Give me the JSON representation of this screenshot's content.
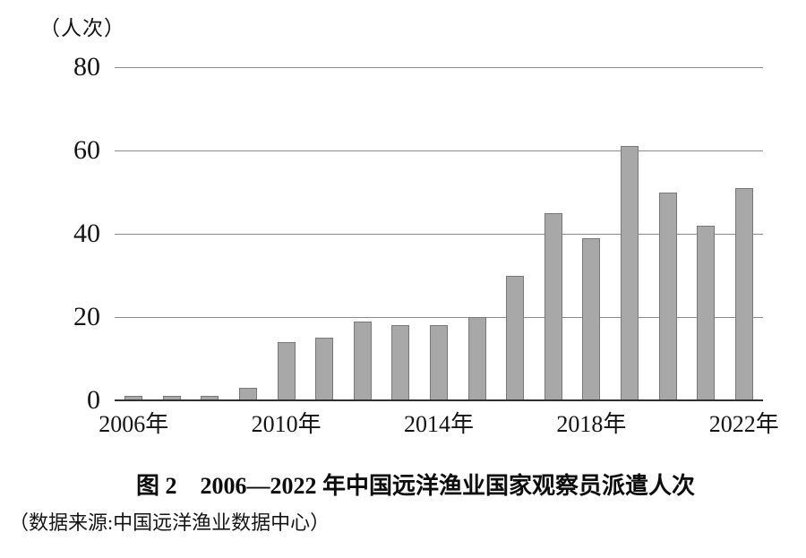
{
  "chart_data": {
    "type": "bar",
    "title": "图 2　2006—2022 年中国远洋渔业国家观察员派遣人次",
    "unit_label": "（人次）",
    "source_note": "（数据来源:中国远洋渔业数据中心）",
    "categories": [
      "2006年",
      "2007年",
      "2008年",
      "2009年",
      "2010年",
      "2011年",
      "2012年",
      "2013年",
      "2014年",
      "2015年",
      "2016年",
      "2017年",
      "2018年",
      "2019年",
      "2020年",
      "2021年",
      "2022年"
    ],
    "values": [
      1,
      1,
      1,
      3,
      14,
      15,
      19,
      18,
      18,
      20,
      30,
      45,
      39,
      61,
      50,
      42,
      51
    ],
    "xlabel": "",
    "ylabel": "人次",
    "ylim": [
      0,
      80
    ],
    "y_ticks": [
      0,
      20,
      40,
      60,
      80
    ],
    "x_tick_labels": [
      "2006年",
      "2010年",
      "2014年",
      "2018年",
      "2022年"
    ],
    "x_tick_indices": [
      0,
      4,
      8,
      12,
      16
    ],
    "grid": true,
    "legend": false,
    "colors": {
      "bar_fill": "#a8a8a8",
      "bar_border": "#787878",
      "gridline": "#8a8a8a",
      "axis": "#303030",
      "text": "#141414",
      "background": "#ffffff"
    }
  }
}
